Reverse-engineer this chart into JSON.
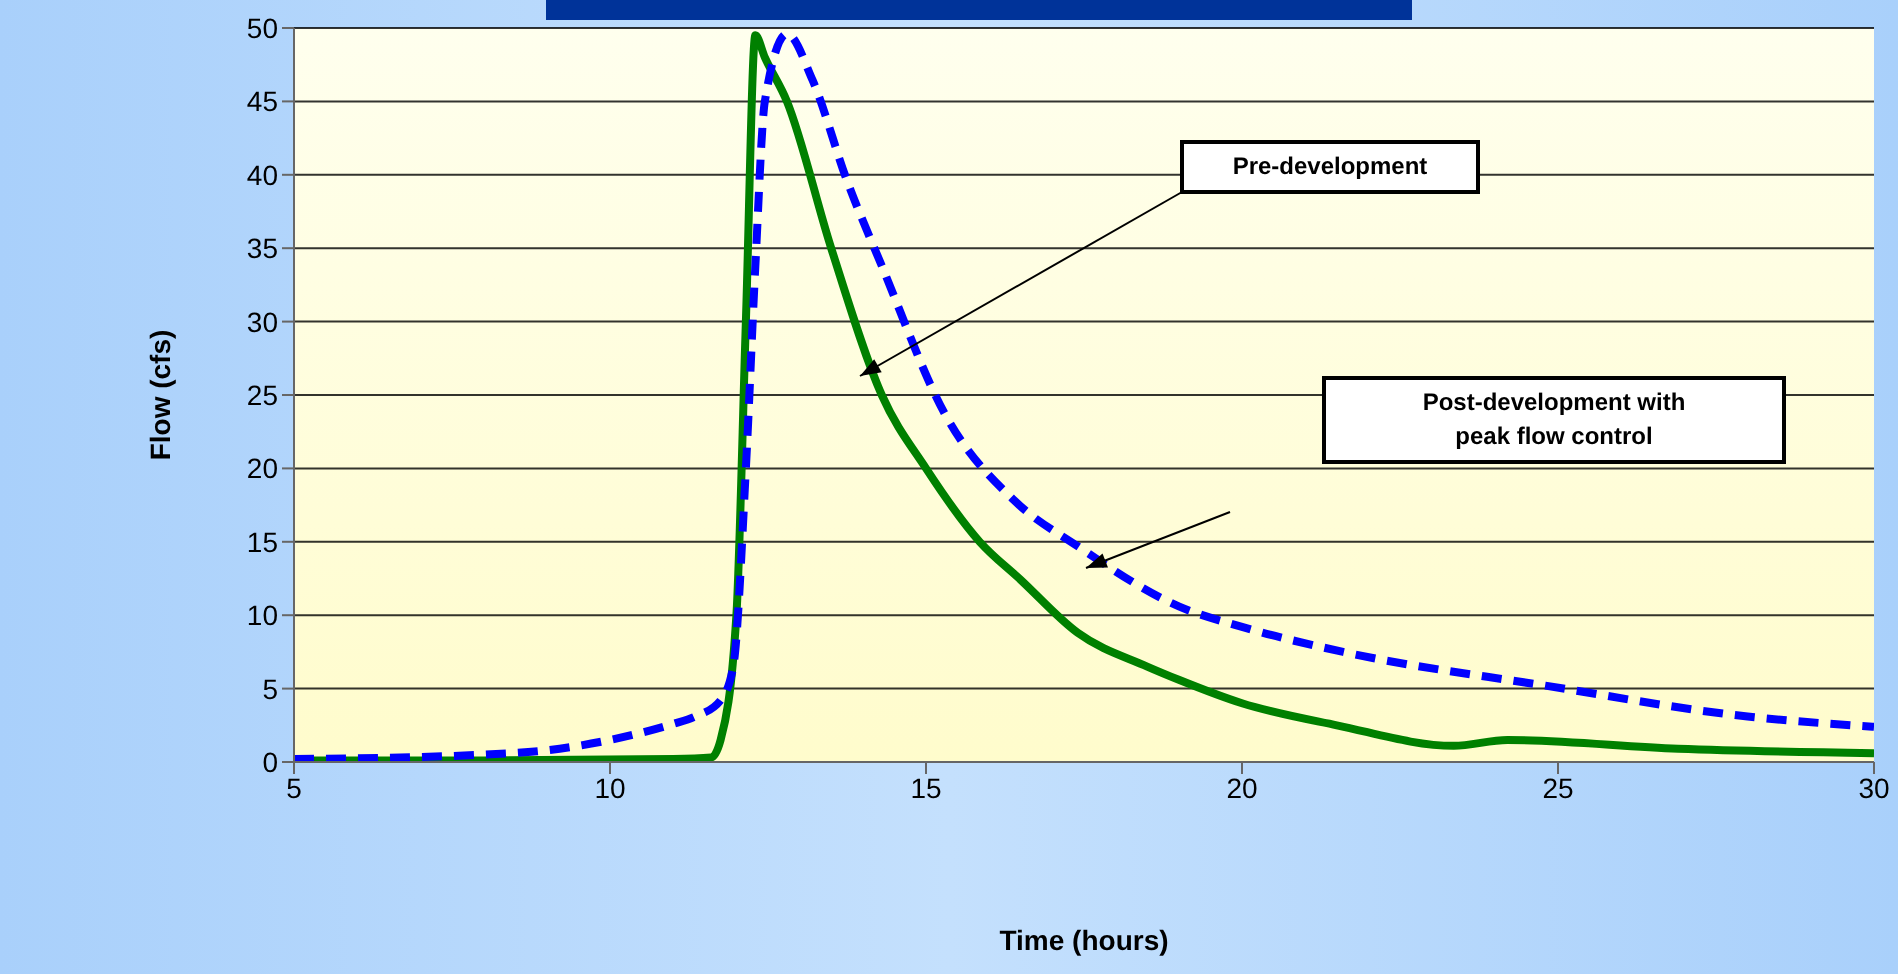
{
  "chart_data": {
    "type": "line",
    "xlabel": "Time (hours)",
    "ylabel": "Flow (cfs)",
    "xlim": [
      5,
      30
    ],
    "xticks": [
      5,
      10,
      15,
      20,
      25,
      30
    ],
    "ylim": [
      0,
      50
    ],
    "yticks": [
      0,
      5,
      10,
      15,
      20,
      25,
      30,
      35,
      40,
      45,
      50
    ],
    "grid": "y",
    "annotations": [
      "Pre-development",
      "Post-development with peak flow control"
    ],
    "series": [
      {
        "color": "#008000",
        "line_style": "solid",
        "x": [
          5,
          8,
          11,
          11.6,
          11.75,
          12.0,
          12.15,
          12.3,
          12.45,
          12.8,
          13.5,
          14.3,
          15.0,
          15.85,
          16.5,
          17.4,
          18.5,
          19.0,
          20.0,
          21.5,
          23.35,
          24.2,
          26.9,
          30
        ],
        "values": [
          0.1,
          0.1,
          0.2,
          0.3,
          1.5,
          10,
          30,
          49.5,
          48,
          45,
          35,
          25,
          20,
          15,
          12.4,
          8.8,
          6.5,
          5.6,
          4,
          2.5,
          1.1,
          1.5,
          0.9,
          0.6
        ]
      },
      {
        "color": "#0000ff",
        "line_style": "dashed",
        "x": [
          5,
          8,
          9,
          10,
          10.5,
          11,
          11.35,
          11.75,
          11.95,
          12.15,
          12.3,
          12.45,
          12.8,
          13.2,
          13.75,
          14.3,
          15.3,
          16.4,
          17.4,
          19.0,
          20.0,
          21.6,
          24.8,
          28.0,
          30
        ],
        "values": [
          0.2,
          0.5,
          0.8,
          1.5,
          2,
          2.6,
          3.1,
          4.2,
          6.5,
          20,
          33.8,
          45,
          49.6,
          46.5,
          39.6,
          33.8,
          23.7,
          17.8,
          14.7,
          10.6,
          9.2,
          7.5,
          5.2,
          3.1,
          2.4
        ]
      }
    ]
  }
}
